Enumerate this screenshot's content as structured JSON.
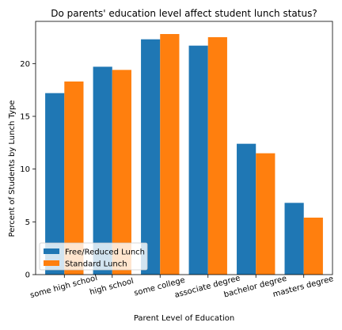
{
  "chart_data": {
    "type": "bar",
    "title": "Do parents' education level affect student lunch status?",
    "xlabel": "Parent Level of Education",
    "ylabel": "Percent of Students by Lunch Type",
    "categories": [
      "some high school",
      "high school",
      "some college",
      "associate degree",
      "bachelor degree",
      "masters degree"
    ],
    "series": [
      {
        "name": "Free/Reduced Lunch",
        "color": "#1f77b4",
        "values": [
          17.2,
          19.7,
          22.3,
          21.7,
          12.4,
          6.8
        ]
      },
      {
        "name": "Standard Lunch",
        "color": "#ff7f0e",
        "values": [
          18.3,
          19.4,
          22.8,
          22.5,
          11.5,
          5.4
        ]
      }
    ],
    "ylim": [
      0,
      24.0
    ],
    "yticks": [
      0,
      5,
      10,
      15,
      20
    ],
    "legend_position": "lower-left",
    "grid": false
  }
}
